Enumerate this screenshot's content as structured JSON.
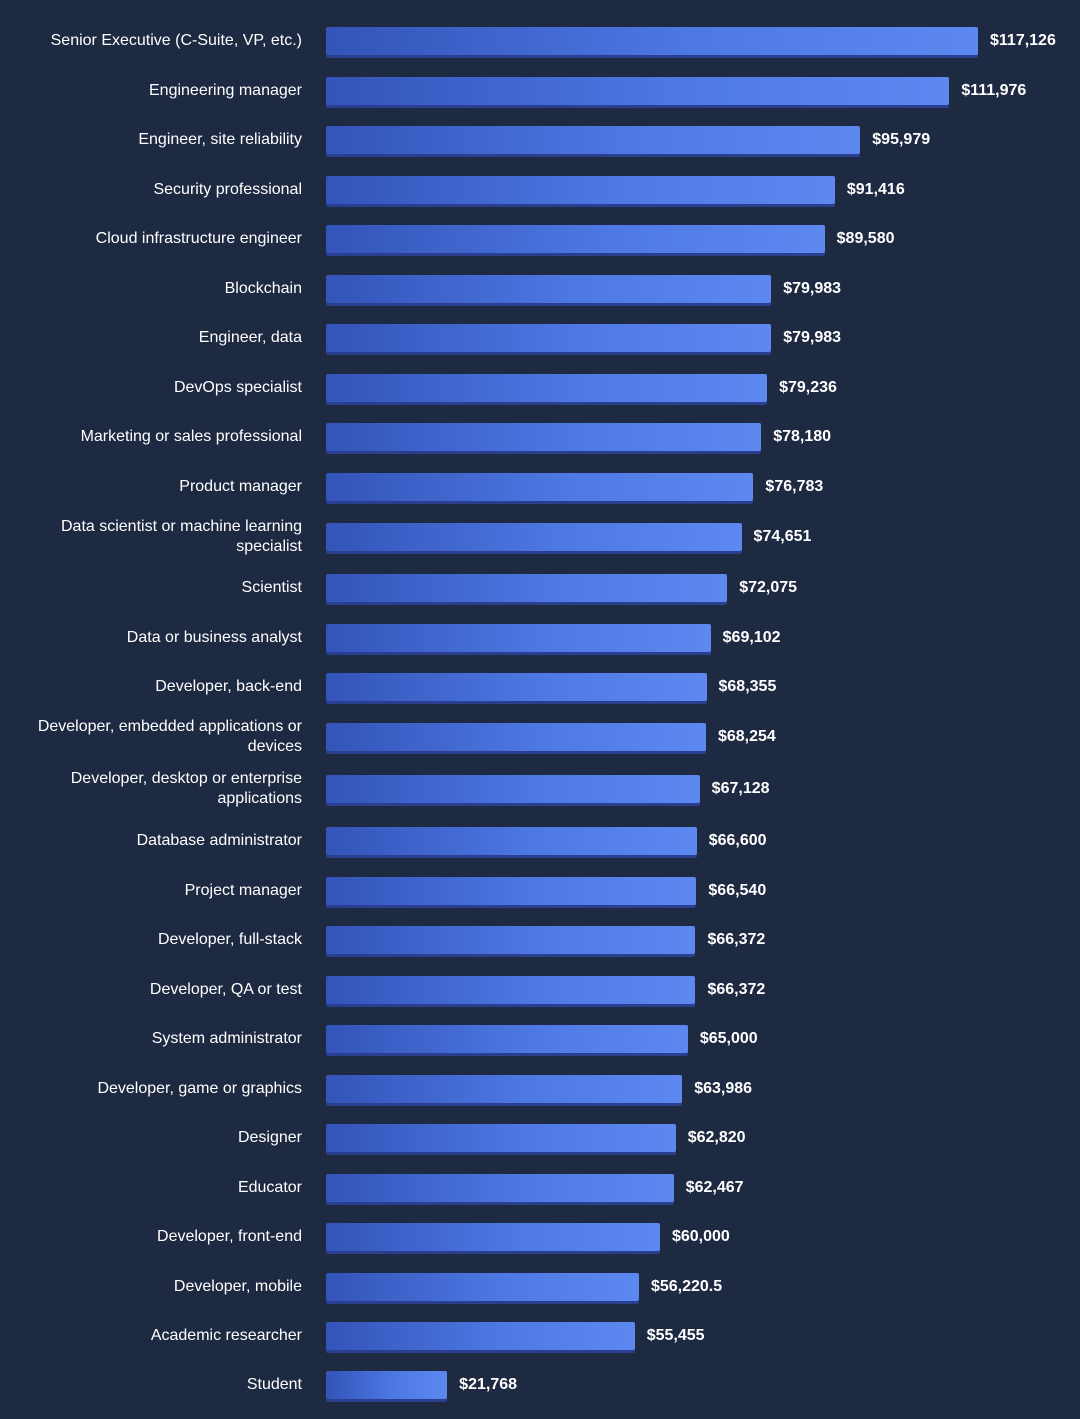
{
  "chart_data": {
    "type": "bar",
    "orientation": "horizontal",
    "categories": [
      "Senior Executive (C-Suite, VP, etc.)",
      "Engineering manager",
      "Engineer, site reliability",
      "Security professional",
      "Cloud infrastructure engineer",
      "Blockchain",
      "Engineer, data",
      "DevOps specialist",
      "Marketing or sales professional",
      "Product manager",
      "Data scientist or machine learning specialist",
      "Scientist",
      "Data or business analyst",
      "Developer, back-end",
      "Developer, embedded applications or devices",
      "Developer, desktop or enterprise applications",
      "Database administrator",
      "Project manager",
      "Developer, full-stack",
      "Developer, QA or test",
      "System administrator",
      "Developer, game or graphics",
      "Designer",
      "Educator",
      "Developer, front-end",
      "Developer, mobile",
      "Academic researcher",
      "Student"
    ],
    "values": [
      117126,
      111976,
      95979,
      91416,
      89580,
      79983,
      79983,
      79236,
      78180,
      76783,
      74651,
      72075,
      69102,
      68355,
      68254,
      67128,
      66600,
      66540,
      66372,
      66372,
      65000,
      63986,
      62820,
      62467,
      60000,
      56220.5,
      55455,
      21768
    ],
    "value_labels": [
      "$117,126",
      "$111,976",
      "$95,979",
      "$91,416",
      "$89,580",
      "$79,983",
      "$79,983",
      "$79,236",
      "$78,180",
      "$76,783",
      "$74,651",
      "$72,075",
      "$69,102",
      "$68,355",
      "$68,254",
      "$67,128",
      "$66,600",
      "$66,540",
      "$66,372",
      "$66,372",
      "$65,000",
      "$63,986",
      "$62,820",
      "$62,467",
      "$60,000",
      "$56,220.5",
      "$55,455",
      "$21,768"
    ],
    "xlim": [
      0,
      117126
    ],
    "grid": false,
    "colors": {
      "background": "#1e2942",
      "bar_start": "#3354b8",
      "bar_end": "#5d88f0",
      "text": "#ffffff"
    }
  }
}
